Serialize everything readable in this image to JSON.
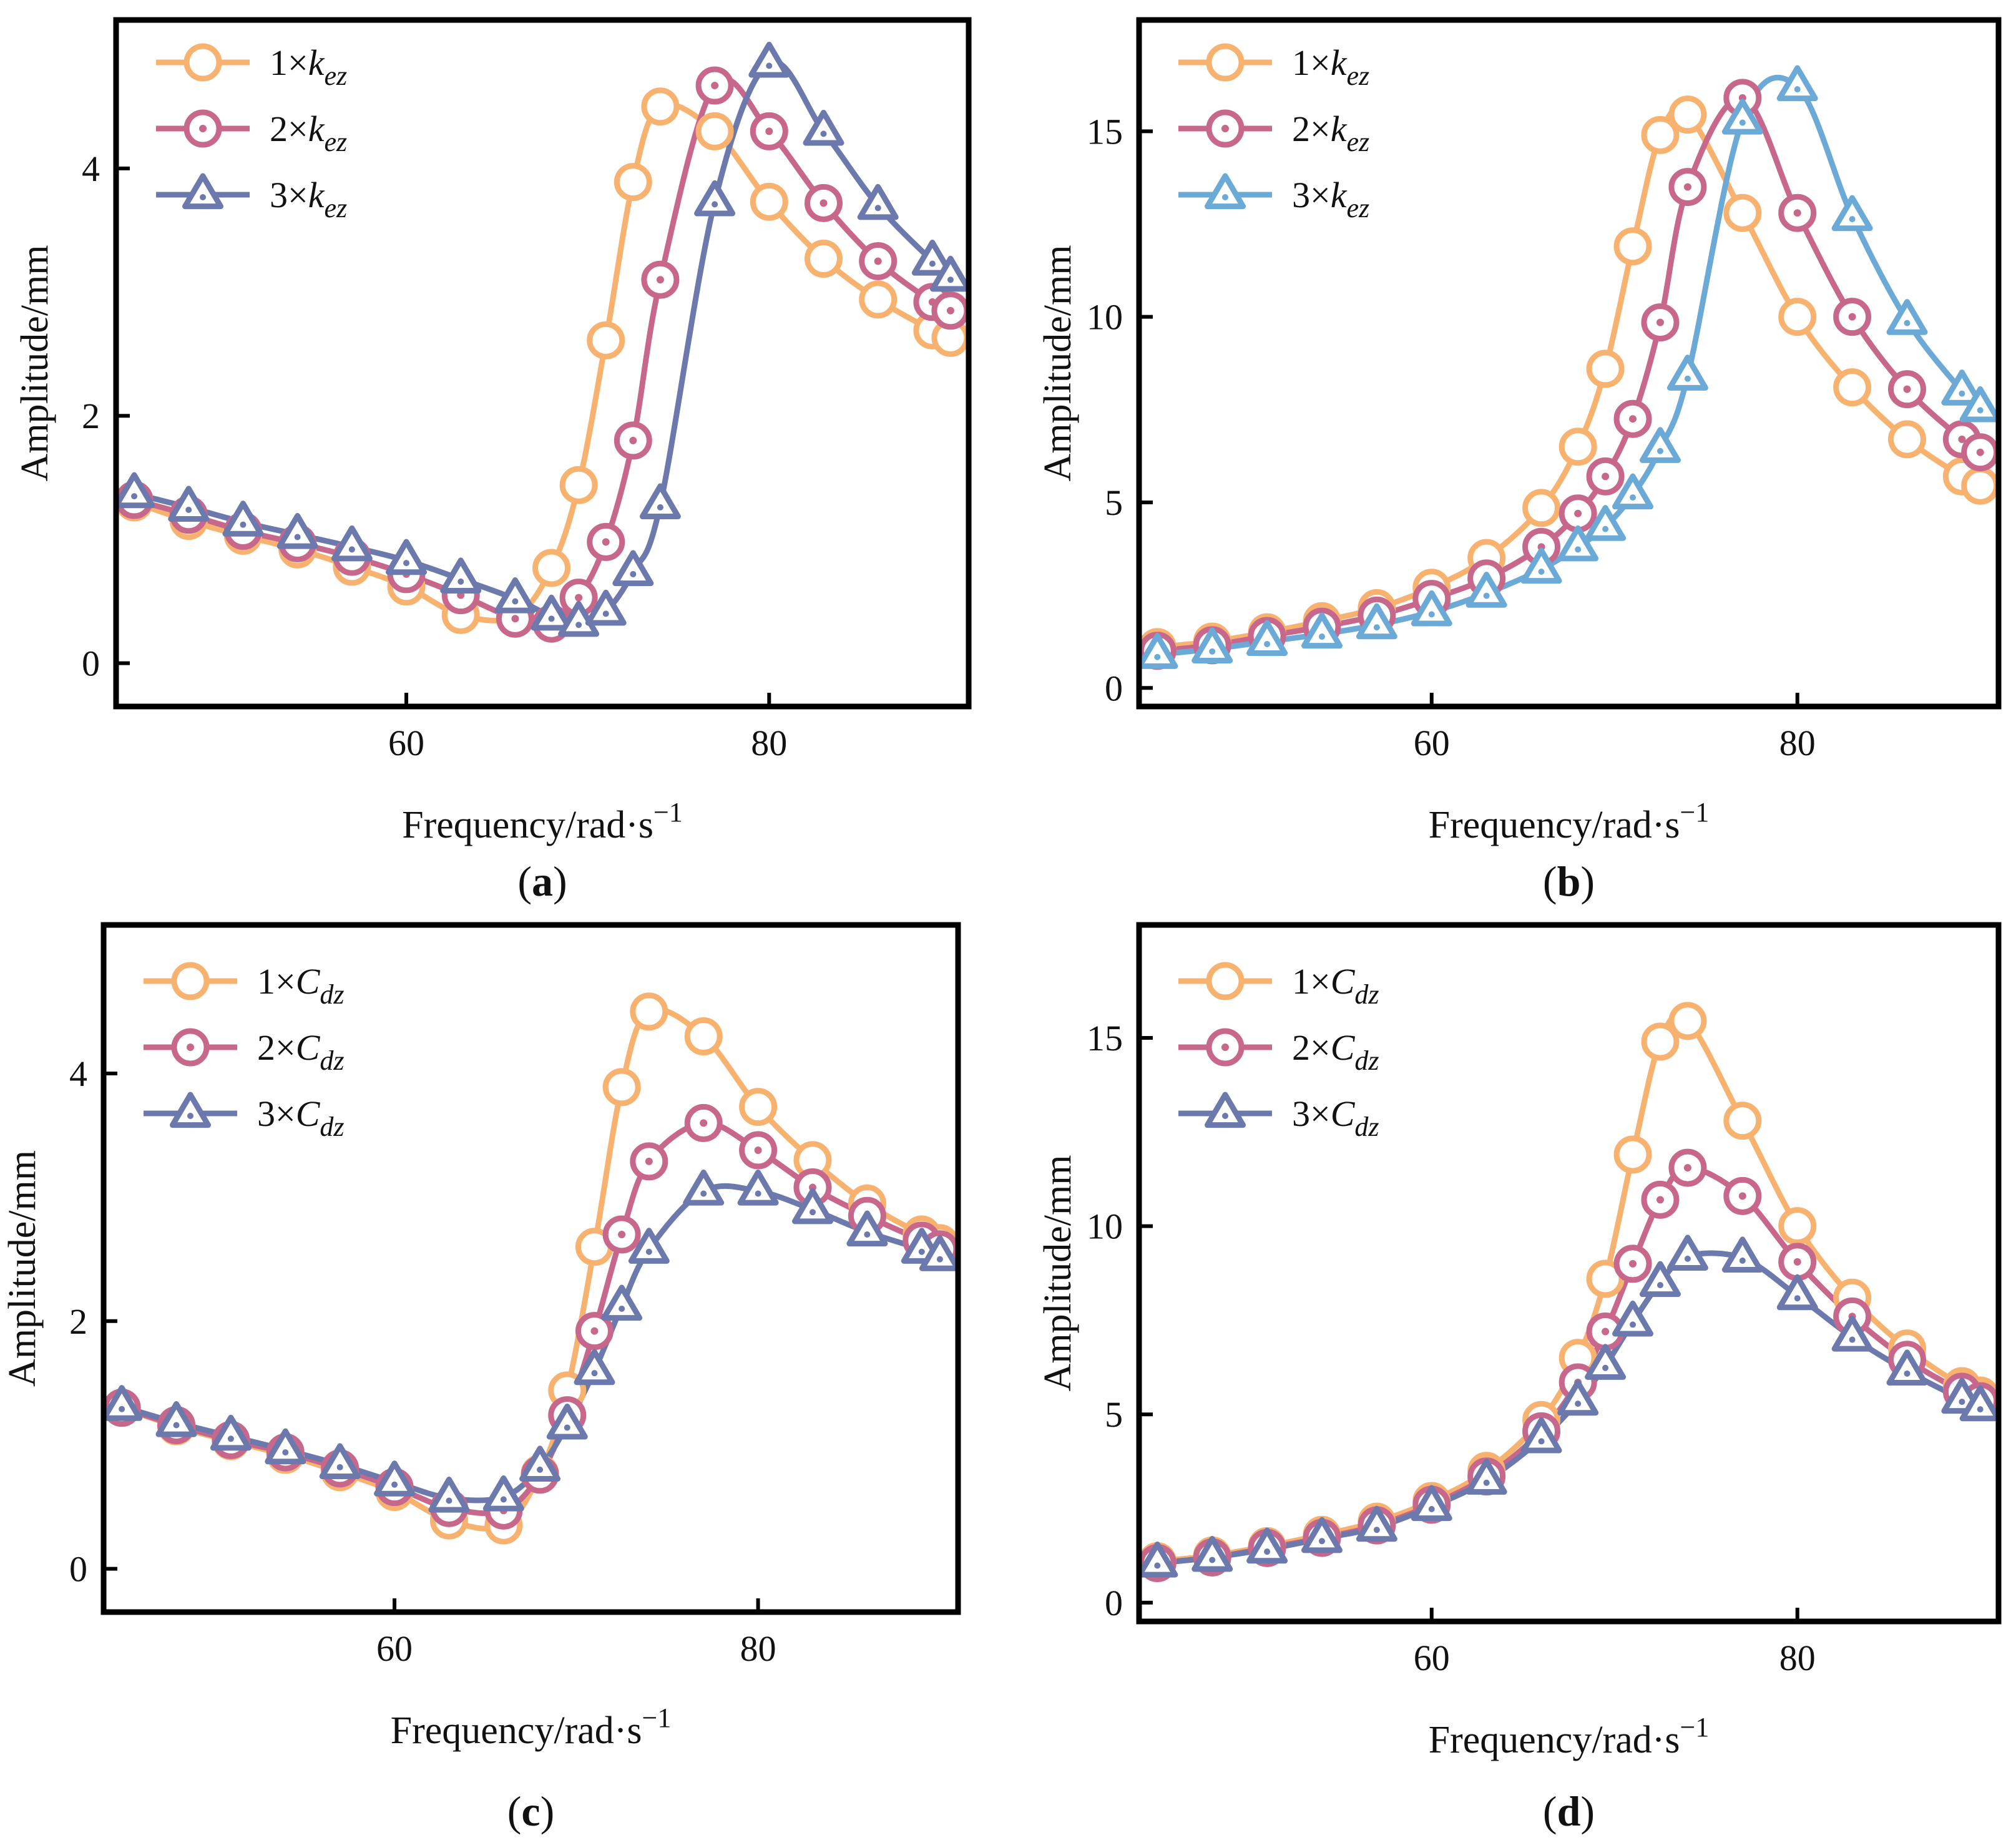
{
  "figure": {
    "ylabel": "Amplitude/mm",
    "xlabel_main": "Frequency/rad·s",
    "xlabel_sup": "−1"
  },
  "chart_data": [
    {
      "type": "line",
      "panel_label": "a",
      "xlim": [
        44,
        91
      ],
      "ylim": [
        -0.35,
        5.2
      ],
      "xticks": [
        60,
        80
      ],
      "yticks": [
        0,
        2,
        4
      ],
      "legend_position": "top-left",
      "series": [
        {
          "name": "1×k",
          "name_sub": "ez",
          "color": "#f8b270",
          "marker": "circle",
          "x": [
            45,
            48,
            51,
            54,
            57,
            60,
            63,
            66,
            68,
            69.5,
            71,
            72.5,
            74,
            77,
            80,
            83,
            86,
            89,
            90
          ],
          "y": [
            1.3,
            1.15,
            1.03,
            0.92,
            0.78,
            0.62,
            0.39,
            0.38,
            0.77,
            1.44,
            2.61,
            3.89,
            4.5,
            4.3,
            3.73,
            3.27,
            2.94,
            2.69,
            2.63
          ]
        },
        {
          "name": "2×k",
          "name_sub": "ez",
          "color": "#c8678c",
          "marker": "dotted-circle",
          "x": [
            45,
            48,
            51,
            54,
            57,
            60,
            63,
            66,
            68,
            69.5,
            71,
            72.5,
            74,
            77,
            80,
            83,
            86,
            89,
            90
          ],
          "y": [
            1.32,
            1.2,
            1.07,
            0.97,
            0.86,
            0.72,
            0.55,
            0.36,
            0.32,
            0.53,
            0.98,
            1.8,
            3.1,
            4.67,
            4.3,
            3.72,
            3.25,
            2.92,
            2.85
          ]
        },
        {
          "name": "3×k",
          "name_sub": "ez",
          "color": "#6b79ac",
          "marker": "dotted-triangle",
          "x": [
            45,
            48,
            51,
            54,
            57,
            60,
            63,
            66,
            68,
            69.5,
            71,
            72.5,
            74,
            77,
            80,
            83,
            86,
            89,
            90
          ],
          "y": [
            1.37,
            1.26,
            1.14,
            1.04,
            0.94,
            0.83,
            0.68,
            0.52,
            0.38,
            0.33,
            0.42,
            0.74,
            1.28,
            3.73,
            4.85,
            4.3,
            3.7,
            3.25,
            3.12
          ]
        }
      ]
    },
    {
      "type": "line",
      "panel_label": "b",
      "xlim": [
        44,
        91
      ],
      "ylim": [
        -0.5,
        18
      ],
      "xticks": [
        60,
        80
      ],
      "yticks": [
        0,
        5,
        10,
        15
      ],
      "legend_position": "top-left",
      "series": [
        {
          "name": "1×k",
          "name_sub": "ez",
          "color": "#f8b270",
          "marker": "circle",
          "x": [
            45,
            48,
            51,
            54,
            57,
            60,
            63,
            66,
            68,
            69.5,
            71,
            72.5,
            74,
            77,
            80,
            83,
            86,
            89,
            90
          ],
          "y": [
            1.1,
            1.25,
            1.5,
            1.8,
            2.15,
            2.7,
            3.5,
            4.85,
            6.5,
            8.6,
            11.9,
            14.9,
            15.45,
            12.8,
            10.0,
            8.1,
            6.7,
            5.7,
            5.45
          ]
        },
        {
          "name": "2×k",
          "name_sub": "ez",
          "color": "#c8678c",
          "marker": "dotted-circle",
          "x": [
            45,
            48,
            51,
            54,
            57,
            60,
            63,
            66,
            68,
            69.5,
            71,
            72.5,
            74,
            77,
            80,
            83,
            86,
            89,
            90
          ],
          "y": [
            1.0,
            1.15,
            1.4,
            1.65,
            1.95,
            2.4,
            2.95,
            3.8,
            4.7,
            5.7,
            7.25,
            9.85,
            13.5,
            15.9,
            12.8,
            10.0,
            8.05,
            6.7,
            6.35
          ]
        },
        {
          "name": "3×k",
          "name_sub": "ez",
          "color": "#6ba9d6",
          "marker": "dotted-triangle",
          "x": [
            45,
            48,
            51,
            54,
            57,
            60,
            63,
            66,
            68,
            69.5,
            71,
            72.5,
            74,
            77,
            80,
            83,
            86,
            89,
            90
          ],
          "y": [
            0.9,
            1.05,
            1.25,
            1.45,
            1.7,
            2.05,
            2.55,
            3.2,
            3.8,
            4.35,
            5.2,
            6.45,
            8.4,
            15.3,
            16.2,
            12.7,
            9.9,
            8.0,
            7.55
          ]
        }
      ]
    },
    {
      "type": "line",
      "panel_label": "c",
      "xlim": [
        44,
        91
      ],
      "ylim": [
        -0.35,
        5.2
      ],
      "xticks": [
        60,
        80
      ],
      "yticks": [
        0,
        2,
        4
      ],
      "legend_position": "top-left",
      "series": [
        {
          "name": "1×C",
          "name_sub": "dz",
          "color": "#f8b270",
          "marker": "circle",
          "x": [
            45,
            48,
            51,
            54,
            57,
            60,
            63,
            66,
            68,
            69.5,
            71,
            72.5,
            74,
            77,
            80,
            83,
            86,
            89,
            90
          ],
          "y": [
            1.3,
            1.15,
            1.03,
            0.92,
            0.78,
            0.62,
            0.39,
            0.35,
            0.77,
            1.44,
            2.6,
            3.89,
            4.5,
            4.3,
            3.73,
            3.3,
            2.95,
            2.7,
            2.63
          ]
        },
        {
          "name": "2×C",
          "name_sub": "dz",
          "color": "#c8678c",
          "marker": "dotted-circle",
          "x": [
            45,
            48,
            51,
            54,
            57,
            60,
            63,
            66,
            68,
            69.5,
            71,
            72.5,
            74,
            77,
            80,
            83,
            86,
            89,
            90
          ],
          "y": [
            1.3,
            1.16,
            1.04,
            0.94,
            0.81,
            0.66,
            0.49,
            0.47,
            0.76,
            1.24,
            1.92,
            2.7,
            3.29,
            3.6,
            3.38,
            3.08,
            2.85,
            2.65,
            2.58
          ]
        },
        {
          "name": "3×C",
          "name_sub": "dz",
          "color": "#6b79ac",
          "marker": "dotted-triangle",
          "x": [
            45,
            48,
            51,
            54,
            57,
            60,
            63,
            66,
            68,
            69.5,
            71,
            72.5,
            74,
            77,
            80,
            83,
            86,
            89,
            90
          ],
          "y": [
            1.31,
            1.18,
            1.07,
            0.96,
            0.84,
            0.7,
            0.57,
            0.58,
            0.82,
            1.16,
            1.6,
            2.12,
            2.58,
            3.05,
            3.05,
            2.9,
            2.72,
            2.58,
            2.52
          ]
        }
      ]
    },
    {
      "type": "line",
      "panel_label": "d",
      "xlim": [
        44,
        91
      ],
      "ylim": [
        -0.5,
        18
      ],
      "xticks": [
        60,
        80
      ],
      "yticks": [
        0,
        5,
        10,
        15
      ],
      "legend_position": "top-left",
      "series": [
        {
          "name": "1×C",
          "name_sub": "dz",
          "color": "#f8b270",
          "marker": "circle",
          "x": [
            45,
            48,
            51,
            54,
            57,
            60,
            63,
            66,
            68,
            69.5,
            71,
            72.5,
            74,
            77,
            80,
            83,
            86,
            89,
            90
          ],
          "y": [
            1.1,
            1.25,
            1.5,
            1.8,
            2.15,
            2.7,
            3.5,
            4.85,
            6.5,
            8.6,
            11.9,
            14.9,
            15.45,
            12.8,
            10.0,
            8.1,
            6.75,
            5.75,
            5.5
          ]
        },
        {
          "name": "2×C",
          "name_sub": "dz",
          "color": "#c8678c",
          "marker": "dotted-circle",
          "x": [
            45,
            48,
            51,
            54,
            57,
            60,
            63,
            66,
            68,
            69.5,
            71,
            72.5,
            74,
            77,
            80,
            83,
            86,
            89,
            90
          ],
          "y": [
            1.05,
            1.2,
            1.45,
            1.72,
            2.05,
            2.6,
            3.35,
            4.55,
            5.85,
            7.2,
            9.0,
            10.7,
            11.55,
            10.8,
            9.05,
            7.6,
            6.45,
            5.6,
            5.35
          ]
        },
        {
          "name": "3×C",
          "name_sub": "dz",
          "color": "#6b79ac",
          "marker": "dotted-triangle",
          "x": [
            45,
            48,
            51,
            54,
            57,
            60,
            63,
            66,
            68,
            69.5,
            71,
            72.5,
            74,
            77,
            80,
            83,
            86,
            89,
            90
          ],
          "y": [
            1.05,
            1.2,
            1.42,
            1.7,
            2.0,
            2.55,
            3.25,
            4.35,
            5.35,
            6.3,
            7.45,
            8.5,
            9.2,
            9.15,
            8.15,
            7.05,
            6.15,
            5.4,
            5.2
          ]
        }
      ]
    }
  ]
}
